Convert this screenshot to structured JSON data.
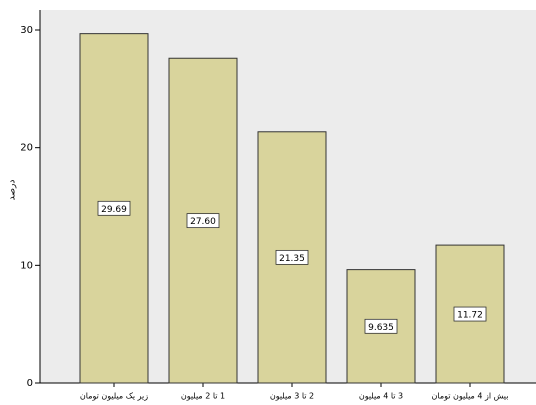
{
  "chart_data": {
    "type": "bar",
    "y_label": "درصد",
    "categories": [
      "زیر یک میلیون تومان",
      "1 تا 2 میلیون",
      "2 تا 3 میلیون",
      "3 تا 4 میلیون",
      "بیش از 4 میلیون تومان"
    ],
    "values": [
      29.69,
      27.6,
      21.35,
      9.635,
      11.72
    ],
    "value_labels": [
      "29.69",
      "27.60",
      "21.35",
      "9.635",
      "11.72"
    ],
    "color": "#d9d49c",
    "ylim": [
      0,
      31.7
    ],
    "yticks": [
      0,
      10,
      20,
      30
    ]
  }
}
